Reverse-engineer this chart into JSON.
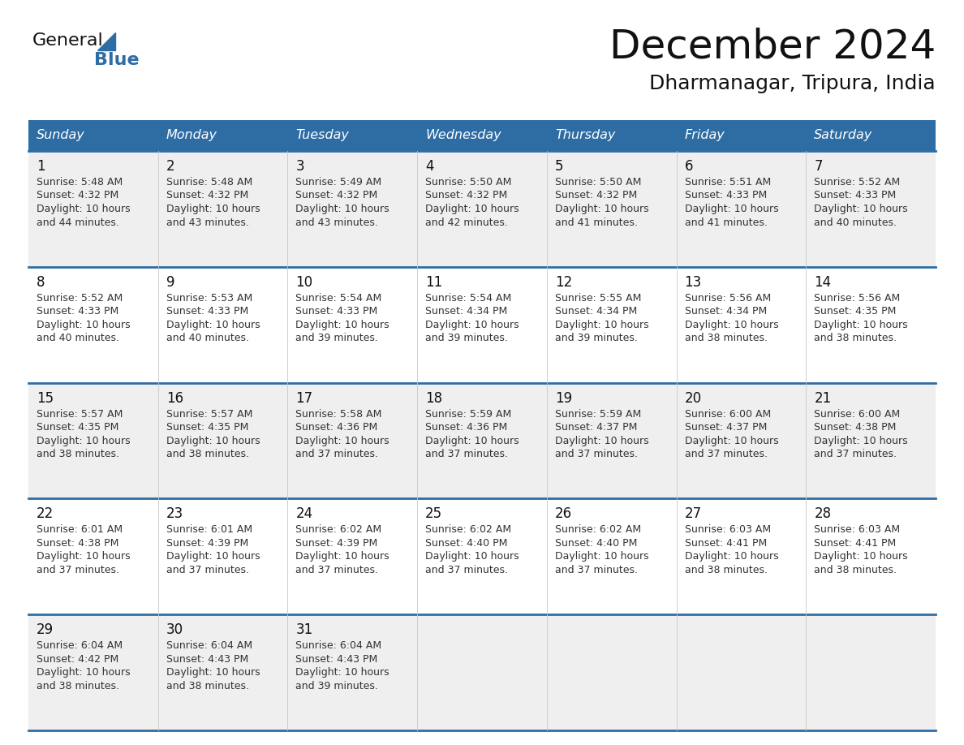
{
  "title": "December 2024",
  "subtitle": "Dharmanagar, Tripura, India",
  "header_color": "#2E6DA4",
  "header_text_color": "#FFFFFF",
  "background_color": "#FFFFFF",
  "cell_bg_even": "#EFEFEF",
  "cell_bg_odd": "#FFFFFF",
  "days_of_week": [
    "Sunday",
    "Monday",
    "Tuesday",
    "Wednesday",
    "Thursday",
    "Friday",
    "Saturday"
  ],
  "title_color": "#111111",
  "subtitle_color": "#111111",
  "cell_text_color": "#333333",
  "day_num_color": "#111111",
  "logo_general_color": "#111111",
  "logo_blue_color": "#2E6DA4",
  "line_color": "#2E6DA4",
  "calendar": [
    [
      {
        "day": 1,
        "sunrise": "5:48 AM",
        "sunset": "4:32 PM",
        "daylight": "10 hours and 44 minutes"
      },
      {
        "day": 2,
        "sunrise": "5:48 AM",
        "sunset": "4:32 PM",
        "daylight": "10 hours and 43 minutes"
      },
      {
        "day": 3,
        "sunrise": "5:49 AM",
        "sunset": "4:32 PM",
        "daylight": "10 hours and 43 minutes"
      },
      {
        "day": 4,
        "sunrise": "5:50 AM",
        "sunset": "4:32 PM",
        "daylight": "10 hours and 42 minutes"
      },
      {
        "day": 5,
        "sunrise": "5:50 AM",
        "sunset": "4:32 PM",
        "daylight": "10 hours and 41 minutes"
      },
      {
        "day": 6,
        "sunrise": "5:51 AM",
        "sunset": "4:33 PM",
        "daylight": "10 hours and 41 minutes"
      },
      {
        "day": 7,
        "sunrise": "5:52 AM",
        "sunset": "4:33 PM",
        "daylight": "10 hours and 40 minutes"
      }
    ],
    [
      {
        "day": 8,
        "sunrise": "5:52 AM",
        "sunset": "4:33 PM",
        "daylight": "10 hours and 40 minutes"
      },
      {
        "day": 9,
        "sunrise": "5:53 AM",
        "sunset": "4:33 PM",
        "daylight": "10 hours and 40 minutes"
      },
      {
        "day": 10,
        "sunrise": "5:54 AM",
        "sunset": "4:33 PM",
        "daylight": "10 hours and 39 minutes"
      },
      {
        "day": 11,
        "sunrise": "5:54 AM",
        "sunset": "4:34 PM",
        "daylight": "10 hours and 39 minutes"
      },
      {
        "day": 12,
        "sunrise": "5:55 AM",
        "sunset": "4:34 PM",
        "daylight": "10 hours and 39 minutes"
      },
      {
        "day": 13,
        "sunrise": "5:56 AM",
        "sunset": "4:34 PM",
        "daylight": "10 hours and 38 minutes"
      },
      {
        "day": 14,
        "sunrise": "5:56 AM",
        "sunset": "4:35 PM",
        "daylight": "10 hours and 38 minutes"
      }
    ],
    [
      {
        "day": 15,
        "sunrise": "5:57 AM",
        "sunset": "4:35 PM",
        "daylight": "10 hours and 38 minutes"
      },
      {
        "day": 16,
        "sunrise": "5:57 AM",
        "sunset": "4:35 PM",
        "daylight": "10 hours and 38 minutes"
      },
      {
        "day": 17,
        "sunrise": "5:58 AM",
        "sunset": "4:36 PM",
        "daylight": "10 hours and 37 minutes"
      },
      {
        "day": 18,
        "sunrise": "5:59 AM",
        "sunset": "4:36 PM",
        "daylight": "10 hours and 37 minutes"
      },
      {
        "day": 19,
        "sunrise": "5:59 AM",
        "sunset": "4:37 PM",
        "daylight": "10 hours and 37 minutes"
      },
      {
        "day": 20,
        "sunrise": "6:00 AM",
        "sunset": "4:37 PM",
        "daylight": "10 hours and 37 minutes"
      },
      {
        "day": 21,
        "sunrise": "6:00 AM",
        "sunset": "4:38 PM",
        "daylight": "10 hours and 37 minutes"
      }
    ],
    [
      {
        "day": 22,
        "sunrise": "6:01 AM",
        "sunset": "4:38 PM",
        "daylight": "10 hours and 37 minutes"
      },
      {
        "day": 23,
        "sunrise": "6:01 AM",
        "sunset": "4:39 PM",
        "daylight": "10 hours and 37 minutes"
      },
      {
        "day": 24,
        "sunrise": "6:02 AM",
        "sunset": "4:39 PM",
        "daylight": "10 hours and 37 minutes"
      },
      {
        "day": 25,
        "sunrise": "6:02 AM",
        "sunset": "4:40 PM",
        "daylight": "10 hours and 37 minutes"
      },
      {
        "day": 26,
        "sunrise": "6:02 AM",
        "sunset": "4:40 PM",
        "daylight": "10 hours and 37 minutes"
      },
      {
        "day": 27,
        "sunrise": "6:03 AM",
        "sunset": "4:41 PM",
        "daylight": "10 hours and 38 minutes"
      },
      {
        "day": 28,
        "sunrise": "6:03 AM",
        "sunset": "4:41 PM",
        "daylight": "10 hours and 38 minutes"
      }
    ],
    [
      {
        "day": 29,
        "sunrise": "6:04 AM",
        "sunset": "4:42 PM",
        "daylight": "10 hours and 38 minutes"
      },
      {
        "day": 30,
        "sunrise": "6:04 AM",
        "sunset": "4:43 PM",
        "daylight": "10 hours and 38 minutes"
      },
      {
        "day": 31,
        "sunrise": "6:04 AM",
        "sunset": "4:43 PM",
        "daylight": "10 hours and 39 minutes"
      },
      null,
      null,
      null,
      null
    ]
  ]
}
